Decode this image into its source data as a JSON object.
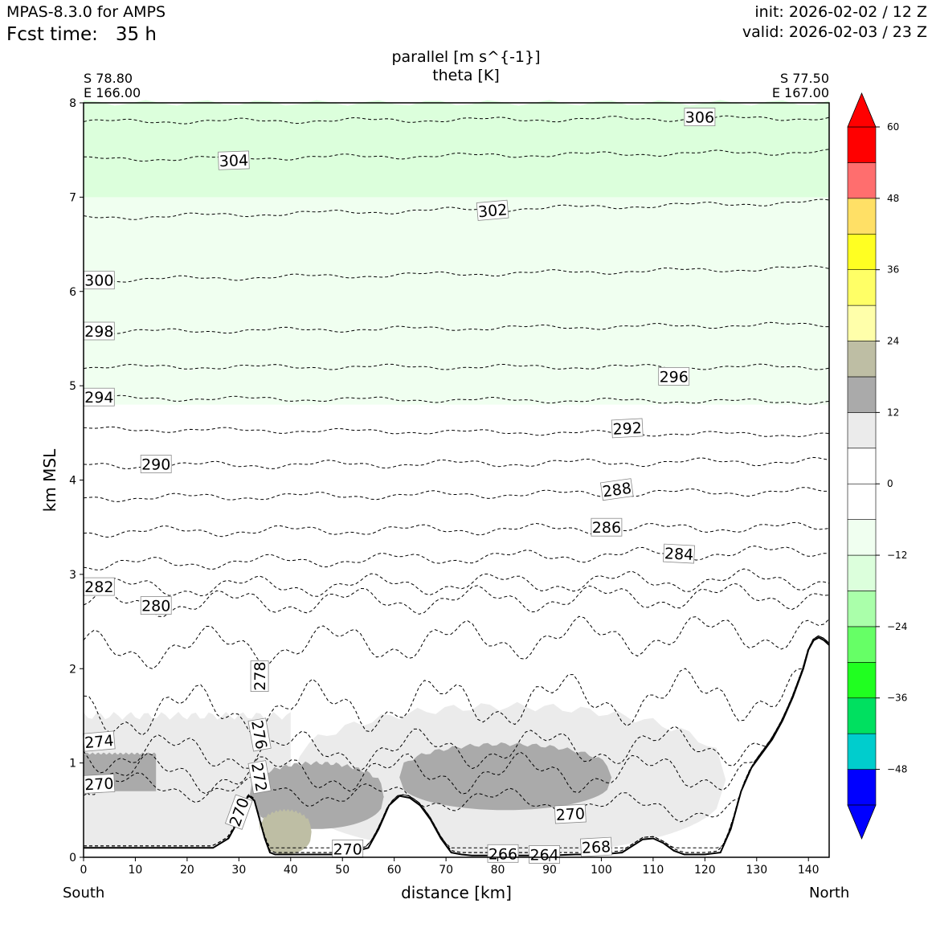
{
  "header": {
    "model": "MPAS-8.3.0 for AMPS",
    "fcst_label": "Fcst time:",
    "fcst_value": "35 h",
    "init": "init: 2026-02-02 / 12 Z",
    "valid": "valid: 2026-02-03 / 23 Z"
  },
  "plot": {
    "title_line1": "parallel [m s^{-1}]",
    "title_line2": "theta [K]",
    "start_lat": "S 78.80",
    "start_lon": "E 166.00",
    "end_lat": "S 77.50",
    "end_lon": "E 167.00",
    "south_label": "South",
    "north_label": "North"
  },
  "chart_data": {
    "type": "contour-cross-section",
    "xlabel": "distance [km]",
    "ylabel": "km MSL",
    "xlim": [
      0,
      144
    ],
    "ylim": [
      0,
      8
    ],
    "x_ticks": [
      0,
      10,
      20,
      30,
      40,
      50,
      60,
      70,
      80,
      90,
      100,
      110,
      120,
      130,
      140
    ],
    "y_ticks": [
      0,
      1,
      2,
      3,
      4,
      5,
      6,
      7,
      8
    ],
    "grid": false,
    "colorbar": {
      "placement": "right",
      "levels": [
        -54,
        -48,
        -42,
        -36,
        -30,
        -24,
        -18,
        -12,
        -6,
        0,
        6,
        12,
        18,
        24,
        30,
        36,
        42,
        48,
        54,
        60
      ],
      "colors": [
        "#0000ff",
        "#00cdcd",
        "#00e060",
        "#20ff20",
        "#66ff66",
        "#aaffaa",
        "#dcffdc",
        "#f0fff0",
        "#ffffff",
        "#ffffff",
        "#ebebeb",
        "#aaaaaa",
        "#bebea4",
        "#ffffaa",
        "#ffff66",
        "#ffff22",
        "#ffe066",
        "#ff6e6e",
        "#ff0000"
      ],
      "tick_labels": [
        "−48",
        "−36",
        "−24",
        "−12",
        "0",
        "12",
        "24",
        "36",
        "48",
        "60"
      ],
      "tick_values": [
        -48,
        -36,
        -24,
        -12,
        0,
        12,
        24,
        36,
        48,
        60
      ],
      "extend": "both",
      "under_color": "#0000ff",
      "over_color": "#ff0000"
    },
    "terrain": {
      "x": [
        0,
        10,
        20,
        25,
        28,
        30,
        31,
        32,
        33,
        34,
        35,
        36,
        37,
        38,
        40,
        43,
        45,
        50,
        55,
        57,
        59,
        61,
        63,
        65,
        67,
        69,
        71,
        73,
        75,
        80,
        85,
        90,
        95,
        100,
        104,
        106,
        108,
        110,
        112,
        114,
        116,
        118,
        120,
        123,
        125,
        127,
        129,
        131,
        133,
        135,
        137,
        139,
        140,
        141,
        142,
        143,
        144
      ],
      "km": [
        0.1,
        0.1,
        0.1,
        0.1,
        0.2,
        0.4,
        0.6,
        0.65,
        0.6,
        0.4,
        0.2,
        0.05,
        0.03,
        0.03,
        0.03,
        0.03,
        0.03,
        0.03,
        0.1,
        0.3,
        0.55,
        0.65,
        0.63,
        0.55,
        0.4,
        0.2,
        0.05,
        0.03,
        0.02,
        0.02,
        0.02,
        0.02,
        0.03,
        0.03,
        0.05,
        0.12,
        0.19,
        0.2,
        0.15,
        0.07,
        0.03,
        0.03,
        0.03,
        0.05,
        0.3,
        0.7,
        0.95,
        1.1,
        1.25,
        1.45,
        1.7,
        2.0,
        2.2,
        2.3,
        2.33,
        2.3,
        2.25
      ]
    },
    "wind_fill_regions": [
      {
        "level_range": [
          -12,
          -6
        ],
        "color": "#f0fff0",
        "x": [
          0,
          144
        ],
        "km": [
          4.8,
          7.1
        ]
      },
      {
        "level_range": [
          -18,
          -12
        ],
        "color": "#dcffdc",
        "x": [
          0,
          144
        ],
        "km": [
          7.0,
          8.0
        ]
      },
      {
        "level_range": [
          6,
          12
        ],
        "color": "#ebebeb",
        "x": [
          0,
          40
        ],
        "km": [
          0.1,
          1.5
        ]
      },
      {
        "level_range": [
          6,
          12
        ],
        "color": "#ebebeb",
        "x": [
          40,
          124
        ],
        "km": [
          0.03,
          1.6
        ]
      },
      {
        "level_range": [
          12,
          18
        ],
        "color": "#aaaaaa",
        "x": [
          0,
          14
        ],
        "km": [
          0.7,
          1.1
        ]
      },
      {
        "level_range": [
          12,
          18
        ],
        "color": "#aaaaaa",
        "x": [
          32,
          58
        ],
        "km": [
          0.3,
          1.0
        ]
      },
      {
        "level_range": [
          12,
          18
        ],
        "color": "#aaaaaa",
        "x": [
          61,
          102
        ],
        "km": [
          0.5,
          1.2
        ]
      },
      {
        "level_range": [
          18,
          24
        ],
        "color": "#bebea4",
        "x": [
          34,
          44
        ],
        "km": [
          0.03,
          0.5
        ]
      }
    ],
    "theta_contours": [
      {
        "value": 306,
        "km_start": 7.8,
        "km_end": 7.84,
        "wiggle": 0.02,
        "label": {
          "text": "306",
          "x": 119,
          "km": 7.85,
          "rotation": 0
        }
      },
      {
        "value": 304,
        "km_start": 7.4,
        "km_end": 7.48,
        "wiggle": 0.02,
        "label": {
          "text": "304",
          "x": 29,
          "km": 7.39,
          "rotation": -2
        }
      },
      {
        "value": 302,
        "km_start": 6.78,
        "km_end": 6.95,
        "wiggle": 0.02,
        "label": {
          "text": "302",
          "x": 79,
          "km": 6.86,
          "rotation": -5
        }
      },
      {
        "value": 300,
        "km_start": 6.12,
        "km_end": 6.25,
        "wiggle": 0.02,
        "label": {
          "text": "300",
          "x": 3,
          "km": 6.12,
          "rotation": 0
        }
      },
      {
        "value": 298,
        "km_start": 5.57,
        "km_end": 5.65,
        "wiggle": 0.02,
        "label": {
          "text": "298",
          "x": 3,
          "km": 5.58,
          "rotation": 0
        }
      },
      {
        "value": 296,
        "km_start": 5.2,
        "km_end": 5.2,
        "wiggle": 0.02,
        "label": {
          "text": "296",
          "x": 114,
          "km": 5.1,
          "rotation": 0
        }
      },
      {
        "value": 294,
        "km_start": 4.87,
        "km_end": 4.83,
        "wiggle": 0.02,
        "label": {
          "text": "294",
          "x": 3,
          "km": 4.88,
          "rotation": 0
        }
      },
      {
        "value": 292,
        "km_start": 4.54,
        "km_end": 4.48,
        "wiggle": 0.02,
        "label": {
          "text": "292",
          "x": 105,
          "km": 4.55,
          "rotation": -3
        }
      },
      {
        "value": 290,
        "km_start": 4.15,
        "km_end": 4.2,
        "wiggle": 0.03,
        "label": {
          "text": "290",
          "x": 14,
          "km": 4.17,
          "rotation": 0
        }
      },
      {
        "value": 288,
        "km_start": 3.81,
        "km_end": 3.88,
        "wiggle": 0.03,
        "label": {
          "text": "288",
          "x": 103,
          "km": 3.9,
          "rotation": -8
        }
      },
      {
        "value": 286,
        "km_start": 3.45,
        "km_end": 3.5,
        "wiggle": 0.04,
        "label": {
          "text": "286",
          "x": 101,
          "km": 3.5,
          "rotation": 0
        }
      },
      {
        "value": 284,
        "km_start": 3.1,
        "km_end": 3.25,
        "wiggle": 0.05,
        "label": {
          "text": "284",
          "x": 115,
          "km": 3.22,
          "rotation": 3
        }
      },
      {
        "value": 282,
        "km_start": 2.85,
        "km_end": 2.95,
        "wiggle": 0.08,
        "label": {
          "text": "282",
          "x": 3,
          "km": 2.87,
          "rotation": 0
        }
      },
      {
        "value": 280,
        "km_start": 2.68,
        "km_end": 2.78,
        "wiggle": 0.1,
        "label": {
          "text": "280",
          "x": 14,
          "km": 2.67,
          "rotation": 0
        }
      },
      {
        "value": 278,
        "km_start": 2.2,
        "km_end": 2.4,
        "wiggle": 0.15,
        "label": {
          "text": "278",
          "x": 34,
          "km": 1.92,
          "rotation": -90
        }
      },
      {
        "value": 276,
        "km_start": 1.52,
        "km_end": 1.75,
        "wiggle": 0.2,
        "label": {
          "text": "276",
          "x": 34,
          "km": 1.3,
          "rotation": 80
        }
      },
      {
        "value": 274,
        "km_start": 1.1,
        "km_end": 1.2,
        "wiggle": 0.15,
        "label": {
          "text": "274",
          "x": 3,
          "km": 1.23,
          "rotation": -5
        }
      },
      {
        "value": 272,
        "km_start": 0.88,
        "km_end": 0.9,
        "wiggle": 0.15,
        "label": {
          "text": "272",
          "x": 34,
          "km": 0.85,
          "rotation": 80
        }
      },
      {
        "value": 270,
        "km_start": 0.78,
        "km_end": 0.45,
        "wiggle": 0.1,
        "labels": [
          {
            "text": "270",
            "x": 3,
            "km": 0.78,
            "rotation": -3
          },
          {
            "text": "270",
            "x": 30,
            "km": 0.48,
            "rotation": -70
          },
          {
            "text": "270",
            "x": 51,
            "km": 0.09,
            "rotation": 0
          },
          {
            "text": "270",
            "x": 94,
            "km": 0.46,
            "rotation": -3
          }
        ]
      },
      {
        "value": 268,
        "km_start": 0.1,
        "km_end": 0.1,
        "wiggle": 0.0,
        "label": {
          "text": "268",
          "x": 99,
          "km": 0.11,
          "rotation": -3
        }
      },
      {
        "value": 266,
        "km_start": 0.05,
        "km_end": 0.05,
        "wiggle": 0.0,
        "label": {
          "text": "266",
          "x": 81,
          "km": 0.04,
          "rotation": 0
        }
      },
      {
        "value": 264,
        "km_start": 0.05,
        "km_end": 0.05,
        "wiggle": 0.0,
        "label": {
          "text": "264",
          "x": 89,
          "km": 0.03,
          "rotation": 0
        }
      }
    ]
  }
}
